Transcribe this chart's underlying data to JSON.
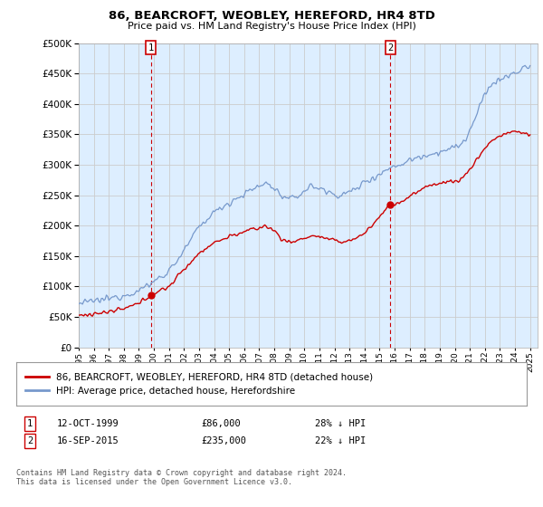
{
  "title": "86, BEARCROFT, WEOBLEY, HEREFORD, HR4 8TD",
  "subtitle": "Price paid vs. HM Land Registry's House Price Index (HPI)",
  "ytick_values": [
    0,
    50000,
    100000,
    150000,
    200000,
    250000,
    300000,
    350000,
    400000,
    450000,
    500000
  ],
  "ylim": [
    0,
    500000
  ],
  "xlim_start": 1995.0,
  "xlim_end": 2025.5,
  "background_color": "#ffffff",
  "plot_bg_color": "#ddeeff",
  "grid_color": "#cccccc",
  "red_line_color": "#cc0000",
  "blue_line_color": "#7799cc",
  "sale1_price": 86000,
  "sale1_year": 1999.79,
  "sale2_price": 235000,
  "sale2_year": 2015.71,
  "legend_line1": "86, BEARCROFT, WEOBLEY, HEREFORD, HR4 8TD (detached house)",
  "legend_line2": "HPI: Average price, detached house, Herefordshire",
  "footnote": "Contains HM Land Registry data © Crown copyright and database right 2024.\nThis data is licensed under the Open Government Licence v3.0.",
  "table_rows": [
    {
      "num": "1",
      "date": "12-OCT-1999",
      "price": "£86,000",
      "change": "28% ↓ HPI"
    },
    {
      "num": "2",
      "date": "16-SEP-2015",
      "price": "£235,000",
      "change": "22% ↓ HPI"
    }
  ]
}
